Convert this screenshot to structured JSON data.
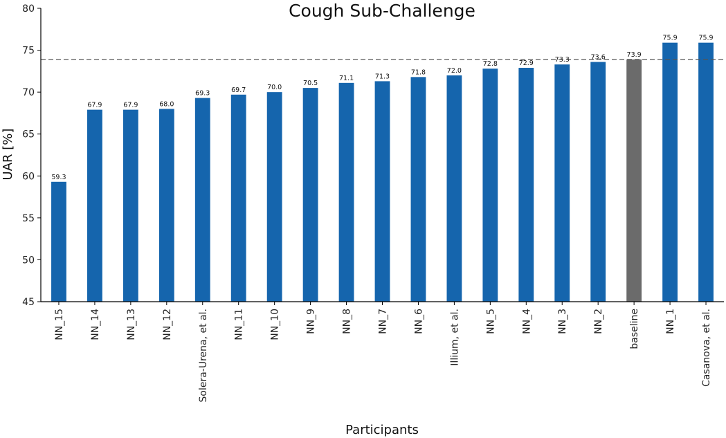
{
  "chart_data": {
    "type": "bar",
    "title": "Cough Sub-Challenge",
    "xlabel": "Participants",
    "ylabel": "UAR [%]",
    "ylim": [
      45,
      80
    ],
    "yticks": [
      45,
      50,
      55,
      60,
      65,
      70,
      75,
      80
    ],
    "categories": [
      "NN_15",
      "NN_14",
      "NN_13",
      "NN_12",
      "Solera-Urena, et al.",
      "NN_11",
      "NN_10",
      "NN_9",
      "NN_8",
      "NN_7",
      "NN_6",
      "Illium, et al.",
      "NN_5",
      "NN_4",
      "NN_3",
      "NN_2",
      "baseline",
      "NN_1",
      "Casanova, et al."
    ],
    "values": [
      59.3,
      67.9,
      67.9,
      68.0,
      69.3,
      69.7,
      70.0,
      70.5,
      71.1,
      71.3,
      71.8,
      72.0,
      72.8,
      72.9,
      73.3,
      73.6,
      73.9,
      75.9,
      75.9
    ],
    "data_labels": [
      "59.3",
      "67.9",
      "67.9",
      "68.0",
      "69.3",
      "69.7",
      "70.0",
      "70.5",
      "71.1",
      "71.3",
      "71.8",
      "72.0",
      "72.8",
      "72.9",
      "73.3",
      "73.6",
      "73.9",
      "75.9",
      "75.9"
    ],
    "bar_color": "#1565ad",
    "highlight_category": "baseline",
    "highlight_color": "#6b6b6b",
    "reference_line": {
      "y": 73.9,
      "style": "dashed",
      "color": "#555555"
    },
    "grid": false,
    "legend": "none"
  }
}
